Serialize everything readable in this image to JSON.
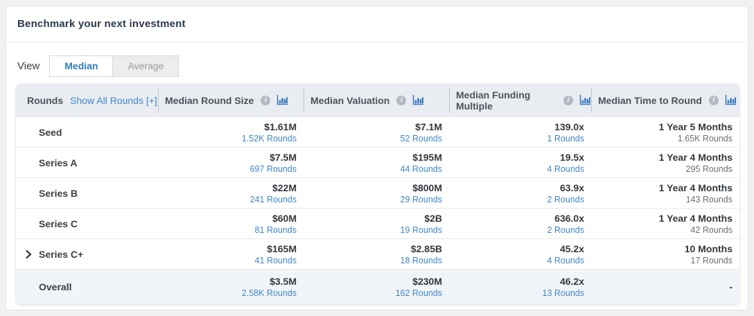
{
  "page": {
    "title": "Benchmark your next investment"
  },
  "view": {
    "label": "View",
    "options": [
      {
        "label": "Median",
        "active": true
      },
      {
        "label": "Average",
        "active": false
      }
    ]
  },
  "colors": {
    "accent_blue": "#2e7cbe",
    "link_blue": "#3f86c7",
    "header_bg": "#e9edf2",
    "overall_row_bg": "#f1f5f9",
    "title_text": "#2b3948"
  },
  "table": {
    "rounds_header": "Rounds",
    "show_all_link": "Show All Rounds [+]",
    "columns": [
      {
        "label": "Median Round Size",
        "info_icon": "info-icon",
        "chart_icon": "bar-chart-icon"
      },
      {
        "label": "Median Valuation",
        "info_icon": "info-icon",
        "chart_icon": "bar-chart-icon"
      },
      {
        "label": "Median Funding Multiple",
        "info_icon": "info-icon",
        "chart_icon": "bar-chart-icon"
      },
      {
        "label": "Median Time to Round",
        "info_icon": "info-icon",
        "chart_icon": "bar-chart-icon"
      }
    ],
    "rows": [
      {
        "label": "Seed",
        "expandable": false,
        "overall": false,
        "cells": [
          {
            "value": "$1.61M",
            "sub": "1.52K Rounds",
            "link": true
          },
          {
            "value": "$7.1M",
            "sub": "52 Rounds",
            "link": true
          },
          {
            "value": "139.0x",
            "sub": "1 Rounds",
            "link": true
          },
          {
            "value": "1 Year 5 Months",
            "sub": "1.65K Rounds",
            "link": false
          }
        ]
      },
      {
        "label": "Series A",
        "expandable": false,
        "overall": false,
        "cells": [
          {
            "value": "$7.5M",
            "sub": "697 Rounds",
            "link": true
          },
          {
            "value": "$195M",
            "sub": "44 Rounds",
            "link": true
          },
          {
            "value": "19.5x",
            "sub": "4 Rounds",
            "link": true
          },
          {
            "value": "1 Year 4 Months",
            "sub": "295 Rounds",
            "link": false
          }
        ]
      },
      {
        "label": "Series B",
        "expandable": false,
        "overall": false,
        "cells": [
          {
            "value": "$22M",
            "sub": "241 Rounds",
            "link": true
          },
          {
            "value": "$800M",
            "sub": "29 Rounds",
            "link": true
          },
          {
            "value": "63.9x",
            "sub": "2 Rounds",
            "link": true
          },
          {
            "value": "1 Year 4 Months",
            "sub": "143 Rounds",
            "link": false
          }
        ]
      },
      {
        "label": "Series C",
        "expandable": false,
        "overall": false,
        "cells": [
          {
            "value": "$60M",
            "sub": "81 Rounds",
            "link": true
          },
          {
            "value": "$2B",
            "sub": "19 Rounds",
            "link": true
          },
          {
            "value": "636.0x",
            "sub": "2 Rounds",
            "link": true
          },
          {
            "value": "1 Year 4 Months",
            "sub": "42 Rounds",
            "link": false
          }
        ]
      },
      {
        "label": "Series C+",
        "expandable": true,
        "overall": false,
        "cells": [
          {
            "value": "$165M",
            "sub": "41 Rounds",
            "link": true
          },
          {
            "value": "$2.85B",
            "sub": "18 Rounds",
            "link": true
          },
          {
            "value": "45.2x",
            "sub": "4 Rounds",
            "link": true
          },
          {
            "value": "10 Months",
            "sub": "17 Rounds",
            "link": false
          }
        ]
      },
      {
        "label": "Overall",
        "expandable": false,
        "overall": true,
        "cells": [
          {
            "value": "$3.5M",
            "sub": "2.58K Rounds",
            "link": true
          },
          {
            "value": "$230M",
            "sub": "162 Rounds",
            "link": true
          },
          {
            "value": "46.2x",
            "sub": "13 Rounds",
            "link": true
          },
          {
            "value": "-",
            "sub": "",
            "link": false
          }
        ]
      }
    ]
  }
}
